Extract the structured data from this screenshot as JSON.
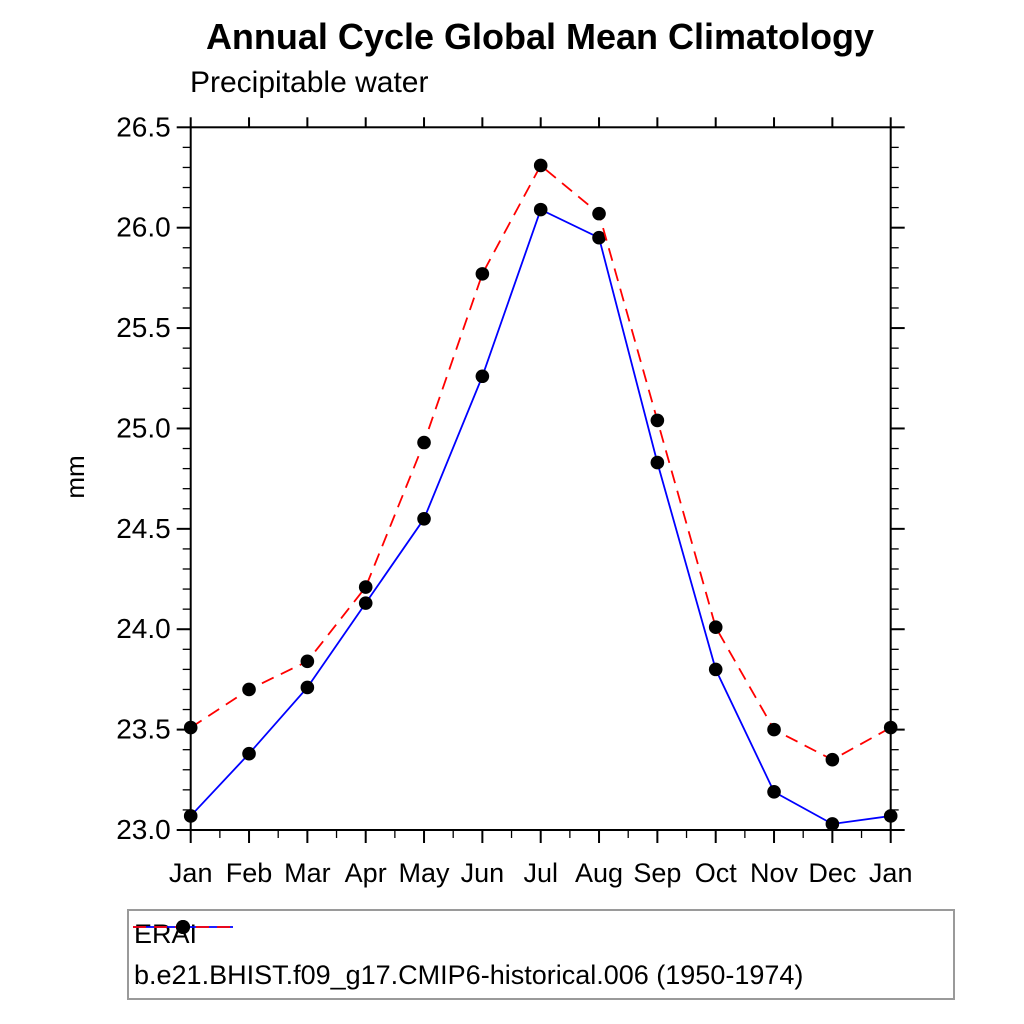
{
  "header": {
    "title": "Annual Cycle Global Mean Climatology",
    "subtitle": "Precipitable water"
  },
  "chart_data": {
    "type": "line",
    "title": "Annual Cycle Global Mean Climatology",
    "subtitle": "Precipitable water",
    "xlabel": "",
    "ylabel": "mm",
    "categories": [
      "Jan",
      "Feb",
      "Mar",
      "Apr",
      "May",
      "Jun",
      "Jul",
      "Aug",
      "Sep",
      "Oct",
      "Nov",
      "Dec",
      "Jan"
    ],
    "ylim": [
      23.0,
      26.5
    ],
    "ytick_labels": [
      "23.0",
      "23.5",
      "24.0",
      "24.5",
      "25.0",
      "25.5",
      "26.0",
      "26.5"
    ],
    "ytick_major_step": 0.5,
    "ytick_minor_step": 0.1,
    "xtick_minor": "half-month",
    "grid": false,
    "frame_color": "#000000",
    "legend": {
      "position": "bottom-left",
      "border_color": "#9a9a9a"
    },
    "series": [
      {
        "name": "ERAI",
        "line_color": "#0000ff",
        "line_style": "solid",
        "marker": "filled-circle",
        "marker_color": "#000000",
        "values": [
          23.07,
          23.38,
          23.71,
          24.13,
          24.55,
          25.26,
          26.09,
          25.95,
          24.83,
          23.8,
          23.19,
          23.03,
          23.07
        ]
      },
      {
        "name": "b.e21.BHIST.f09_g17.CMIP6-historical.006 (1950-1974)",
        "line_color": "#ff0000",
        "line_style": "dashed",
        "marker": "filled-circle",
        "marker_color": "#000000",
        "values": [
          23.51,
          23.7,
          23.84,
          24.21,
          24.93,
          25.77,
          26.31,
          26.07,
          25.04,
          24.01,
          23.5,
          23.35,
          23.51
        ]
      }
    ]
  }
}
